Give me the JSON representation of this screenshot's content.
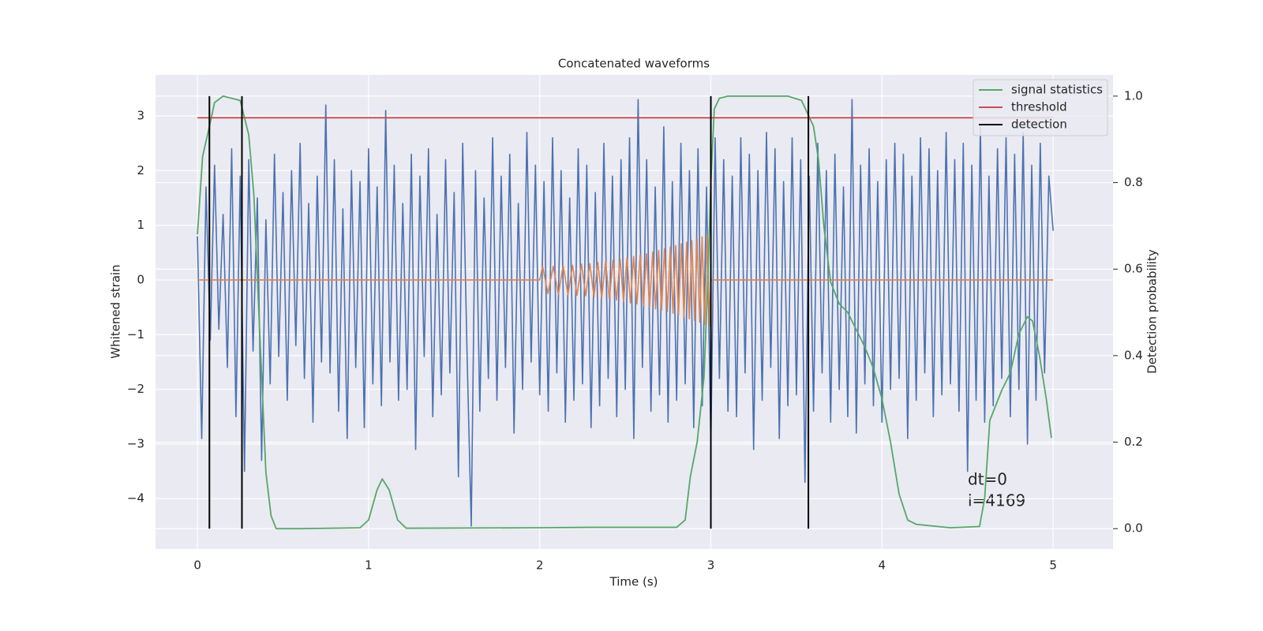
{
  "chart_data": {
    "type": "line",
    "title": "Concatenated waveforms",
    "xlabel": "Time (s)",
    "ylabel": "Whitened strain",
    "y2label": "Detection probability",
    "xlim": [
      -0.245,
      5.35
    ],
    "ylim": [
      -4.92,
      3.75
    ],
    "y2lim": [
      -0.047,
      1.049
    ],
    "xticks": [
      0,
      1,
      2,
      3,
      4,
      5
    ],
    "yticks": [
      {
        "value": -4,
        "label": "−4"
      },
      {
        "value": -3,
        "label": "−3"
      },
      {
        "value": -2,
        "label": "−2"
      },
      {
        "value": -1,
        "label": "−1"
      },
      0,
      1,
      2,
      3
    ],
    "y2ticks": [
      {
        "value": 0,
        "label": "0.0"
      },
      0.2,
      0.4,
      0.6,
      0.8,
      {
        "value": 1,
        "label": "1.0"
      }
    ],
    "grid": true,
    "legend": "upper right",
    "annotation": [
      "dt=0",
      "i=4169"
    ],
    "series": [
      {
        "color": "#4c72b0",
        "axis": "y",
        "x": [
          0,
          0.025,
          0.05,
          0.075,
          0.1,
          0.125,
          0.15,
          0.175,
          0.2,
          0.225,
          0.25,
          0.275,
          0.3,
          0.325,
          0.35,
          0.375,
          0.4,
          0.425,
          0.45,
          0.475,
          0.5,
          0.525,
          0.55,
          0.575,
          0.6,
          0.625,
          0.65,
          0.675,
          0.7,
          0.725,
          0.75,
          0.775,
          0.8,
          0.825,
          0.85,
          0.875,
          0.9,
          0.925,
          0.95,
          0.975,
          1,
          1.025,
          1.05,
          1.075,
          1.1,
          1.125,
          1.15,
          1.175,
          1.2,
          1.225,
          1.25,
          1.275,
          1.3,
          1.325,
          1.35,
          1.375,
          1.4,
          1.425,
          1.45,
          1.475,
          1.5,
          1.525,
          1.55,
          1.575,
          1.6,
          1.625,
          1.65,
          1.675,
          1.7,
          1.725,
          1.75,
          1.775,
          1.8,
          1.825,
          1.85,
          1.875,
          1.9,
          1.925,
          1.95,
          1.975,
          2,
          2.025,
          2.05,
          2.075,
          2.1,
          2.125,
          2.15,
          2.175,
          2.2,
          2.225,
          2.25,
          2.275,
          2.3,
          2.325,
          2.35,
          2.375,
          2.4,
          2.425,
          2.45,
          2.475,
          2.5,
          2.525,
          2.55,
          2.575,
          2.6,
          2.625,
          2.65,
          2.675,
          2.7,
          2.725,
          2.75,
          2.775,
          2.8,
          2.825,
          2.85,
          2.875,
          2.9,
          2.925,
          2.95,
          2.975,
          3,
          3.025,
          3.05,
          3.075,
          3.1,
          3.125,
          3.15,
          3.175,
          3.2,
          3.225,
          3.25,
          3.275,
          3.3,
          3.325,
          3.35,
          3.375,
          3.4,
          3.425,
          3.45,
          3.475,
          3.5,
          3.525,
          3.55,
          3.575,
          3.6,
          3.625,
          3.65,
          3.675,
          3.7,
          3.725,
          3.75,
          3.775,
          3.8,
          3.825,
          3.85,
          3.875,
          3.9,
          3.925,
          3.95,
          3.975,
          4,
          4.025,
          4.05,
          4.075,
          4.1,
          4.125,
          4.15,
          4.175,
          4.2,
          4.225,
          4.25,
          4.275,
          4.3,
          4.325,
          4.35,
          4.375,
          4.4,
          4.425,
          4.45,
          4.475,
          4.5,
          4.525,
          4.55,
          4.575,
          4.6,
          4.625,
          4.65,
          4.675,
          4.7,
          4.725,
          4.75,
          4.775,
          4.8,
          4.825,
          4.85,
          4.875,
          4.9,
          4.925,
          4.95,
          4.975,
          5
        ],
        "values": [
          0.8,
          -2.9,
          1.7,
          -1.1,
          2.1,
          -0.9,
          1.2,
          -1.6,
          2.4,
          -2.5,
          1.9,
          -3.5,
          2.2,
          -1.3,
          1.5,
          -3.3,
          1.1,
          -1.9,
          2.3,
          -1.4,
          1.6,
          -2.2,
          2.0,
          -1.2,
          2.5,
          -1.8,
          1.4,
          -2.6,
          1.9,
          -1.5,
          3.2,
          -1.7,
          2.2,
          -2.4,
          1.3,
          -2.9,
          2.0,
          -1.6,
          1.8,
          -2.7,
          2.4,
          -1.9,
          1.7,
          -2.3,
          3.1,
          -1.5,
          2.1,
          -2.2,
          1.4,
          -2.0,
          2.3,
          -3.1,
          1.9,
          -1.4,
          2.4,
          -2.5,
          1.2,
          -2.1,
          2.2,
          -1.7,
          1.6,
          -3.6,
          2.5,
          -1.3,
          -4.5,
          2.0,
          -2.4,
          1.5,
          -1.8,
          2.6,
          -2.2,
          1.9,
          -1.6,
          2.3,
          -2.8,
          1.4,
          -2.0,
          2.7,
          -1.5,
          2.1,
          -2.1,
          1.8,
          -2.4,
          2.6,
          -1.7,
          2.0,
          -2.6,
          1.5,
          -2.2,
          2.4,
          -1.9,
          2.1,
          -2.7,
          1.6,
          -2.3,
          2.5,
          -1.8,
          1.9,
          -2.5,
          2.2,
          -2.0,
          2.6,
          -2.9,
          3.3,
          -1.6,
          2.2,
          -2.4,
          1.7,
          -2.1,
          2.8,
          -2.6,
          1.8,
          -2.2,
          2.5,
          -1.9,
          2.0,
          -2.7,
          2.4,
          -2.3,
          1.7,
          -3.0,
          2.6,
          -1.8,
          2.2,
          -2.4,
          1.9,
          -2.5,
          2.6,
          -1.7,
          2.3,
          -3.1,
          2.0,
          -2.2,
          2.7,
          -1.6,
          2.4,
          -2.9,
          1.8,
          -2.3,
          2.6,
          -2.1,
          2.2,
          -3.7,
          1.9,
          -2.4,
          2.5,
          -1.7,
          2.0,
          -2.6,
          2.3,
          -2.0,
          1.7,
          -2.5,
          3.3,
          -2.8,
          2.1,
          -1.9,
          2.4,
          -2.3,
          1.8,
          -2.6,
          2.2,
          -2.0,
          2.5,
          -1.8,
          2.3,
          -2.9,
          1.9,
          -2.2,
          2.6,
          -1.7,
          2.4,
          -2.5,
          2.0,
          -2.1,
          2.7,
          -1.9,
          2.2,
          -2.4,
          2.5,
          -3.5,
          2.1,
          -2.2,
          2.8,
          -2.6,
          1.9,
          -2.3,
          2.4,
          -1.8,
          2.6,
          -2.5,
          2.3,
          -2.0,
          2.7,
          -3.0,
          2.1,
          -2.2,
          2.5,
          -1.7,
          1.9,
          0.9
        ]
      },
      {
        "color": "#dd8452",
        "axis": "y",
        "x": [
          0,
          2,
          2.017,
          2.048,
          2.079,
          2.109,
          2.137,
          2.165,
          2.192,
          2.218,
          2.244,
          2.269,
          2.293,
          2.317,
          2.34,
          2.362,
          2.385,
          2.407,
          2.428,
          2.449,
          2.47,
          2.49,
          2.51,
          2.53,
          2.549,
          2.568,
          2.587,
          2.606,
          2.624,
          2.642,
          2.66,
          2.677,
          2.695,
          2.712,
          2.729,
          2.746,
          2.763,
          2.779,
          2.795,
          2.811,
          2.827,
          2.843,
          2.859,
          2.874,
          2.889,
          2.905,
          2.92,
          2.935,
          2.949,
          2.964,
          2.978,
          2.993,
          3,
          5
        ],
        "values": [
          0,
          0,
          0.25,
          -0.25,
          0.25,
          -0.26,
          0.26,
          -0.27,
          0.27,
          -0.28,
          0.29,
          -0.29,
          0.3,
          -0.31,
          0.32,
          -0.33,
          0.34,
          -0.35,
          0.36,
          -0.37,
          0.38,
          -0.39,
          0.41,
          -0.42,
          0.43,
          -0.44,
          0.46,
          -0.47,
          0.48,
          -0.5,
          0.51,
          -0.53,
          0.54,
          -0.55,
          0.57,
          -0.58,
          0.6,
          -0.61,
          0.63,
          -0.64,
          0.66,
          -0.68,
          0.69,
          -0.71,
          0.72,
          -0.74,
          0.76,
          -0.77,
          0.79,
          -0.81,
          0.82,
          -0.84,
          0,
          0
        ]
      },
      {
        "name": "signal statistics",
        "color": "#55a868",
        "axis": "y2",
        "x": [
          0,
          0.03,
          0.07,
          0.1,
          0.15,
          0.25,
          0.3,
          0.33,
          0.36,
          0.38,
          0.4,
          0.43,
          0.46,
          0.6,
          0.95,
          1,
          1.05,
          1.08,
          1.12,
          1.17,
          1.22,
          2,
          2.3,
          2.8,
          2.85,
          2.88,
          2.92,
          2.96,
          2.98,
          3,
          3.02,
          3.05,
          3.1,
          3.45,
          3.53,
          3.6,
          3.63,
          3.66,
          3.7,
          3.75,
          3.8,
          3.85,
          3.9,
          3.95,
          4,
          4.05,
          4.1,
          4.15,
          4.2,
          4.4,
          4.57,
          4.6,
          4.63,
          4.7,
          4.75,
          4.8,
          4.85,
          4.88,
          4.92,
          4.96,
          4.99
        ],
        "values": [
          0.68,
          0.86,
          0.93,
          0.985,
          1.0,
          0.99,
          0.91,
          0.77,
          0.49,
          0.31,
          0.13,
          0.03,
          0,
          0,
          0.002,
          0.02,
          0.09,
          0.115,
          0.09,
          0.02,
          0.001,
          0.002,
          0.003,
          0.003,
          0.02,
          0.12,
          0.2,
          0.35,
          0.55,
          0.8,
          0.97,
          0.995,
          1.0,
          1.0,
          0.99,
          0.93,
          0.85,
          0.7,
          0.57,
          0.52,
          0.5,
          0.46,
          0.42,
          0.37,
          0.3,
          0.2,
          0.08,
          0.02,
          0.01,
          0.002,
          0.005,
          0.07,
          0.25,
          0.32,
          0.36,
          0.45,
          0.49,
          0.48,
          0.4,
          0.3,
          0.21
        ]
      },
      {
        "name": "threshold",
        "color": "#c44e52",
        "axis": "y2",
        "x": [
          0,
          5
        ],
        "values": [
          0.95,
          0.95
        ]
      },
      {
        "name": "detection",
        "color": "#000000",
        "axis": "y2",
        "type": "vlines",
        "x": [
          0.07,
          0.26,
          3.0,
          3.57
        ],
        "ymin": 0,
        "ymax": 1
      }
    ]
  }
}
